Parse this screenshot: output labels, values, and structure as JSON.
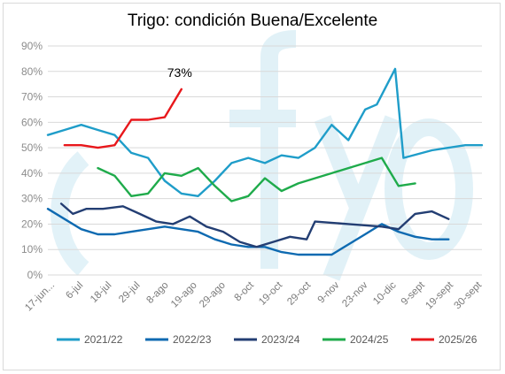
{
  "chart_data": {
    "type": "line",
    "title": "Trigo: condición Buena/Excelente",
    "ylim": [
      0,
      90
    ],
    "y_ticks": [
      "0%",
      "10%",
      "20%",
      "30%",
      "40%",
      "50%",
      "60%",
      "70%",
      "80%",
      "90%"
    ],
    "y_tick_values": [
      0,
      10,
      20,
      30,
      40,
      50,
      60,
      70,
      80,
      90
    ],
    "x_labels": [
      "17-jun...",
      "6-jul",
      "18-jul",
      "29-jul",
      "8-ago",
      "19-ago",
      "29-ago",
      "8-oct",
      "19-oct",
      "29-oct",
      "9-nov",
      "23-nov",
      "10-dic",
      "9-sept",
      "19-sept",
      "30-sept"
    ],
    "grid": true,
    "legend_position": "bottom",
    "annotation": "73%",
    "series": [
      {
        "name": "2021/22",
        "color": "#1f9dc9",
        "points": [
          [
            0,
            55
          ],
          [
            1,
            57
          ],
          [
            2,
            59
          ],
          [
            3,
            57
          ],
          [
            4,
            55
          ],
          [
            5,
            48
          ],
          [
            6,
            46
          ],
          [
            7,
            37
          ],
          [
            8,
            32
          ],
          [
            9,
            31
          ],
          [
            10,
            37
          ],
          [
            11,
            44
          ],
          [
            12,
            46
          ],
          [
            13,
            44
          ],
          [
            14,
            47
          ],
          [
            15,
            46
          ],
          [
            16,
            50
          ],
          [
            17,
            59
          ],
          [
            18,
            53
          ],
          [
            19,
            65
          ],
          [
            19.7,
            67
          ],
          [
            20.8,
            81
          ],
          [
            21.3,
            46
          ],
          [
            23,
            49
          ],
          [
            24,
            50
          ],
          [
            25,
            51
          ],
          [
            26,
            51
          ]
        ]
      },
      {
        "name": "2022/23",
        "color": "#0e6ab1",
        "points": [
          [
            0,
            26
          ],
          [
            1,
            22
          ],
          [
            2,
            18
          ],
          [
            3,
            16
          ],
          [
            4,
            16
          ],
          [
            5,
            17
          ],
          [
            6,
            18
          ],
          [
            7,
            19
          ],
          [
            8,
            18
          ],
          [
            9,
            17
          ],
          [
            10,
            14
          ],
          [
            11,
            12
          ],
          [
            12,
            11
          ],
          [
            13,
            11
          ],
          [
            14,
            9
          ],
          [
            15,
            8
          ],
          [
            16,
            8
          ],
          [
            17,
            8
          ],
          [
            18,
            12
          ],
          [
            19,
            16
          ],
          [
            20,
            20
          ],
          [
            21,
            17
          ],
          [
            22,
            15
          ],
          [
            23,
            14
          ],
          [
            24,
            14
          ]
        ]
      },
      {
        "name": "2023/24",
        "color": "#233e73",
        "points": [
          [
            0.8,
            28
          ],
          [
            1.5,
            24
          ],
          [
            2.3,
            26
          ],
          [
            3.3,
            26
          ],
          [
            4.5,
            27
          ],
          [
            5.5,
            24
          ],
          [
            6.5,
            21
          ],
          [
            7.5,
            20
          ],
          [
            8.5,
            23
          ],
          [
            9.5,
            19
          ],
          [
            10.5,
            17
          ],
          [
            11.5,
            13
          ],
          [
            12.5,
            11
          ],
          [
            13.5,
            13
          ],
          [
            14.5,
            15
          ],
          [
            15.5,
            14
          ],
          [
            16,
            21
          ],
          [
            18,
            20
          ],
          [
            20,
            19
          ],
          [
            21,
            18
          ],
          [
            22,
            24
          ],
          [
            23,
            25
          ],
          [
            24,
            22
          ]
        ]
      },
      {
        "name": "2024/25",
        "color": "#1fab4b",
        "points": [
          [
            3,
            42
          ],
          [
            4,
            39
          ],
          [
            5,
            31
          ],
          [
            6,
            32
          ],
          [
            7,
            40
          ],
          [
            8,
            39
          ],
          [
            9,
            42
          ],
          [
            10,
            35
          ],
          [
            11,
            29
          ],
          [
            12,
            31
          ],
          [
            13,
            38
          ],
          [
            14,
            33
          ],
          [
            15,
            36
          ],
          [
            16,
            38
          ],
          [
            17,
            40
          ],
          [
            18,
            42
          ],
          [
            19,
            44
          ],
          [
            20,
            46
          ],
          [
            21,
            35
          ],
          [
            22,
            36
          ]
        ]
      },
      {
        "name": "2025/26",
        "color": "#e8171b",
        "points": [
          [
            1,
            51
          ],
          [
            2,
            51
          ],
          [
            3,
            50
          ],
          [
            4,
            51
          ],
          [
            5,
            61
          ],
          [
            6,
            61
          ],
          [
            7,
            62
          ],
          [
            8,
            73
          ]
        ]
      }
    ]
  }
}
